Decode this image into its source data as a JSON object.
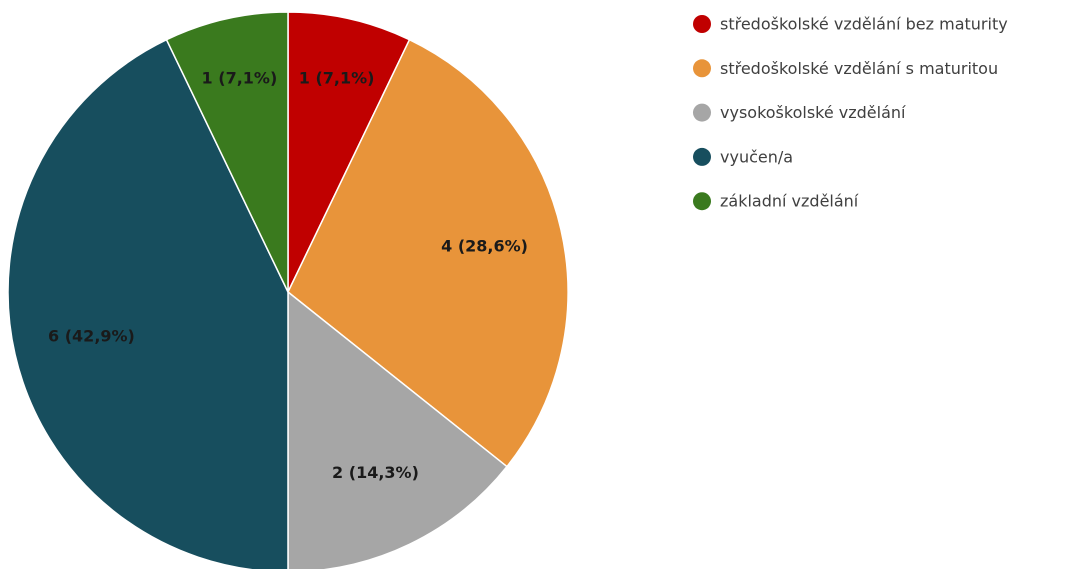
{
  "chart_data": {
    "type": "pie",
    "categories": [
      "středoškolské vzdělání bez maturity",
      "středoškolské vzdělání s maturitou",
      "vysokoškolské vzdělání",
      "vyučen/a",
      "základní vzdělání"
    ],
    "values": [
      1,
      4,
      2,
      6,
      1
    ],
    "value_labels": [
      "1 (7,1%)",
      "4 (28,6%)",
      "2 (14,3%)",
      "6 (42,9%)",
      "1 (7,1%)"
    ],
    "colors": [
      "#c00000",
      "#e8943a",
      "#a6a6a6",
      "#174e5e",
      "#3a7a1e"
    ],
    "legend": "right"
  }
}
